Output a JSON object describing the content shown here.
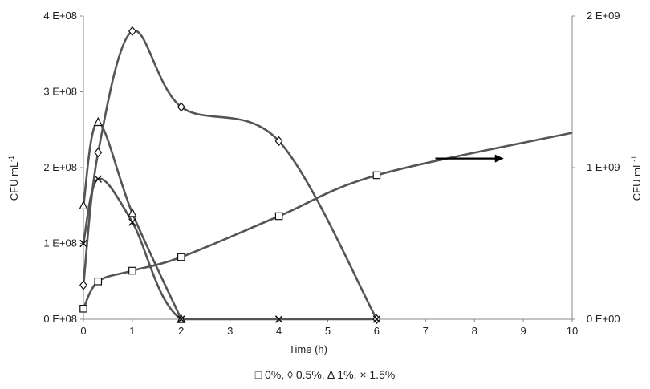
{
  "chart_data": {
    "type": "line",
    "title": "",
    "xlabel": "Time (h)",
    "ylabel_left": "CFU mL",
    "ylabel_left_sup": "-1",
    "ylabel_right": "CFU mL",
    "ylabel_right_sup": "-1",
    "xlim": [
      0,
      10
    ],
    "ylim_left": [
      0,
      400000000
    ],
    "ylim_right": [
      0,
      2000000000
    ],
    "x_ticks": [
      "0",
      "1",
      "2",
      "3",
      "4",
      "5",
      "6",
      "7",
      "8",
      "9",
      "10"
    ],
    "y_left_ticks": [
      "0 E+08",
      "1 E+08",
      "2 E+08",
      "3 E+08",
      "4 E+08"
    ],
    "y_right_ticks": [
      "0 E+00",
      "1 E+09",
      "2 E+09"
    ],
    "grid": false,
    "line_color": "#555555",
    "series": [
      {
        "name": "0%",
        "marker": "square",
        "axis": "right",
        "x": [
          0,
          0.3,
          1,
          2,
          4,
          6
        ],
        "y": [
          70000000,
          250000000,
          320000000,
          410000000,
          680000000,
          950000000
        ],
        "curve_end": {
          "x": 10,
          "y": 1230000000
        }
      },
      {
        "name": "0.5%",
        "marker": "diamond",
        "axis": "left",
        "x": [
          0,
          0.3,
          1,
          2,
          4,
          6
        ],
        "y": [
          45000000,
          220000000,
          380000000,
          280000000,
          235000000,
          0
        ]
      },
      {
        "name": "1%",
        "marker": "triangle",
        "axis": "left",
        "x": [
          0,
          0.3,
          1,
          2
        ],
        "y": [
          150000000,
          260000000,
          140000000,
          0
        ]
      },
      {
        "name": "1.5%",
        "marker": "cross",
        "axis": "left",
        "x": [
          0,
          0.3,
          1,
          2,
          4,
          6
        ],
        "y": [
          100000000,
          185000000,
          128000000,
          0,
          0,
          0
        ]
      }
    ],
    "annotation_arrow": {
      "x_from": 7.2,
      "x_to": 8.6,
      "y_left": 212000000
    }
  },
  "legend": {
    "items": [
      {
        "symbol": "□",
        "label": "0%"
      },
      {
        "symbol": "◊",
        "label": "0.5%"
      },
      {
        "symbol": "Δ",
        "label": "1%"
      },
      {
        "symbol": "×",
        "label": "1.5%"
      }
    ]
  }
}
